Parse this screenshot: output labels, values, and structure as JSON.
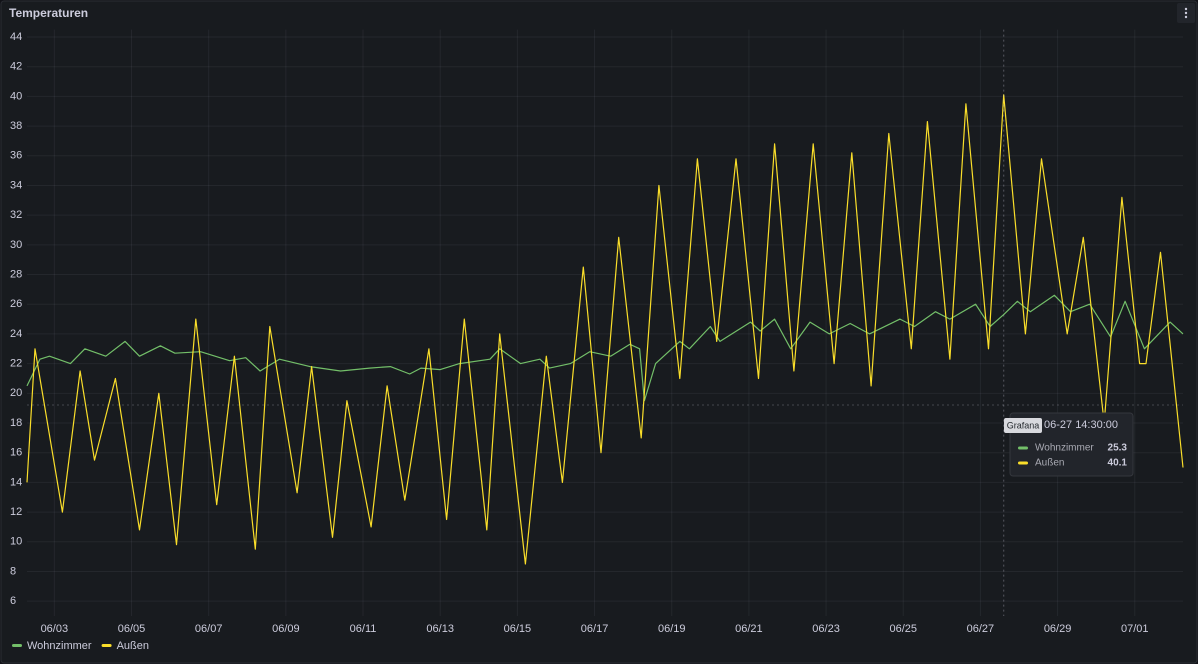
{
  "chart_data": {
    "type": "line",
    "title": "Temperaturen",
    "xlim": [
      "06-02 07:00",
      "07-02 06:00"
    ],
    "xticks": [
      {
        "value": "06-03 00:00",
        "label": "06/03"
      },
      {
        "value": "06-05 00:00",
        "label": "06/05"
      },
      {
        "value": "06-07 00:00",
        "label": "06/07"
      },
      {
        "value": "06-09 00:00",
        "label": "06/09"
      },
      {
        "value": "06-11 00:00",
        "label": "06/11"
      },
      {
        "value": "06-13 00:00",
        "label": "06/13"
      },
      {
        "value": "06-15 00:00",
        "label": "06/15"
      },
      {
        "value": "06-17 00:00",
        "label": "06/17"
      },
      {
        "value": "06-19 00:00",
        "label": "06/19"
      },
      {
        "value": "06-21 00:00",
        "label": "06/21"
      },
      {
        "value": "06-23 00:00",
        "label": "06/23"
      },
      {
        "value": "06-25 00:00",
        "label": "06/25"
      },
      {
        "value": "06-27 00:00",
        "label": "06/27"
      },
      {
        "value": "06-29 00:00",
        "label": "06/29"
      },
      {
        "value": "07-01 00:00",
        "label": "07/01"
      }
    ],
    "ylim": [
      5,
      44.5
    ],
    "yticks": [
      6,
      8,
      10,
      12,
      14,
      16,
      18,
      20,
      22,
      24,
      26,
      28,
      30,
      32,
      34,
      36,
      38,
      40,
      42,
      44
    ],
    "grid": true,
    "legend": "bottom",
    "series": [
      {
        "name": "Wohnzimmer",
        "color": "#73bf69",
        "x": [
          "06-02 07:00",
          "06-02 15:00",
          "06-02 21:00",
          "06-03 10:00",
          "06-03 19:00",
          "06-04 08:00",
          "06-04 20:00",
          "06-05 05:00",
          "06-05 18:00",
          "06-06 03:00",
          "06-06 19:00",
          "06-07 13:00",
          "06-07 23:00",
          "06-08 08:00",
          "06-08 20:00",
          "06-09 15:00",
          "06-10 10:00",
          "06-11 04:00",
          "06-11 17:00",
          "06-12 05:00",
          "06-12 12:00",
          "06-13 00:00",
          "06-13 12:00",
          "06-14 07:00",
          "06-14 13:00",
          "06-15 02:00",
          "06-15 14:00",
          "06-15 20:00",
          "06-16 09:00",
          "06-16 21:00",
          "06-17 10:00",
          "06-17 22:00",
          "06-18 04:00",
          "06-18 07:00",
          "06-18 14:00",
          "06-19 05:00",
          "06-19 11:00",
          "06-20 00:00",
          "06-20 06:00",
          "06-21 01:00",
          "06-21 07:00",
          "06-21 16:00",
          "06-22 02:00",
          "06-22 14:00",
          "06-23 02:00",
          "06-23 15:00",
          "06-24 03:00",
          "06-24 22:00",
          "06-25 07:00",
          "06-25 20:00",
          "06-26 05:00",
          "06-26 21:00",
          "06-27 06:00",
          "06-27 14:30",
          "06-27 23:00",
          "06-28 07:00",
          "06-28 22:00",
          "06-29 08:00",
          "06-29 20:00",
          "06-30 09:00",
          "06-30 18:00",
          "07-01 06:00",
          "07-01 22:00",
          "07-02 06:00"
        ],
        "values": [
          20.5,
          22.3,
          22.5,
          22,
          23,
          22.5,
          23.5,
          22.5,
          23.2,
          22.7,
          22.8,
          22.2,
          22.4,
          21.5,
          22.3,
          21.8,
          21.5,
          21.7,
          21.8,
          21.3,
          21.7,
          21.6,
          22,
          22.3,
          23,
          22,
          22.3,
          21.7,
          22,
          22.8,
          22.5,
          23.3,
          23,
          19.5,
          22,
          23.5,
          23,
          24.5,
          23.5,
          24.8,
          24.2,
          25,
          23,
          24.8,
          24,
          24.7,
          24,
          25,
          24.5,
          25.5,
          25,
          26,
          24.5,
          25.3,
          26.2,
          25.5,
          26.6,
          25.5,
          26,
          23.8,
          26.2,
          23,
          24.8,
          24
        ]
      },
      {
        "name": "Außen",
        "color": "#fade2a",
        "x": [
          "06-02 07:00",
          "06-02 12:00",
          "06-03 05:00",
          "06-03 16:00",
          "06-04 01:00",
          "06-04 14:00",
          "06-05 05:00",
          "06-05 17:00",
          "06-06 04:00",
          "06-06 16:00",
          "06-07 05:00",
          "06-07 16:00",
          "06-08 05:00",
          "06-08 14:00",
          "06-09 07:00",
          "06-09 16:00",
          "06-10 05:00",
          "06-10 14:00",
          "06-11 05:00",
          "06-11 15:00",
          "06-12 02:00",
          "06-12 17:00",
          "06-13 04:00",
          "06-13 15:00",
          "06-14 05:00",
          "06-14 13:00",
          "06-15 05:00",
          "06-15 18:00",
          "06-16 04:00",
          "06-16 17:00",
          "06-17 04:00",
          "06-17 15:00",
          "06-18 05:00",
          "06-18 16:00",
          "06-19 05:00",
          "06-19 16:00",
          "06-20 04:00",
          "06-20 16:00",
          "06-21 06:00",
          "06-21 16:00",
          "06-22 04:00",
          "06-22 16:00",
          "06-23 05:00",
          "06-23 16:00",
          "06-24 04:00",
          "06-24 15:00",
          "06-25 05:00",
          "06-25 15:00",
          "06-26 05:00",
          "06-26 15:00",
          "06-27 05:00",
          "06-27 14:30",
          "06-28 04:00",
          "06-28 14:00",
          "06-29 06:00",
          "06-29 16:00",
          "06-30 05:00",
          "06-30 16:00",
          "07-01 03:00",
          "07-01 07:00",
          "07-01 16:00",
          "07-02 06:00"
        ],
        "values": [
          14,
          23,
          12,
          21.5,
          15.5,
          21,
          10.8,
          20,
          9.8,
          25,
          12.5,
          22.5,
          9.5,
          24.5,
          13.3,
          21.8,
          10.3,
          19.5,
          11,
          20.5,
          12.8,
          23,
          11.5,
          25,
          10.8,
          24,
          8.5,
          22.5,
          14,
          28.5,
          16,
          30.5,
          17,
          34,
          21,
          35.8,
          23.5,
          35.8,
          21,
          36.8,
          21.5,
          36.8,
          22,
          36.2,
          20.5,
          37.5,
          23,
          38.3,
          22.3,
          39.5,
          23,
          40.1,
          24,
          35.8,
          24,
          30.5,
          18,
          33.2,
          22,
          22,
          29.5,
          15
        ]
      }
    ]
  },
  "tooltip": {
    "badge": "Grafana",
    "time": "06-27 14:30:00"
  }
}
